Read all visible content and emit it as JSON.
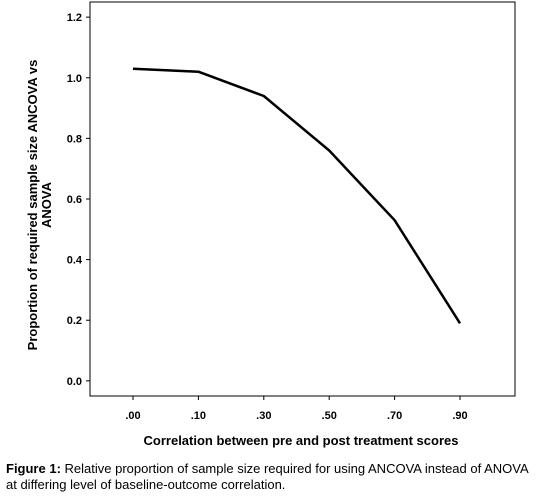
{
  "chart_data": {
    "type": "line",
    "x": [
      ".00",
      ".10",
      ".30",
      ".50",
      ".70",
      ".90"
    ],
    "series": [
      {
        "values": [
          1.03,
          1.02,
          0.94,
          0.76,
          0.53,
          0.19
        ]
      }
    ],
    "xlabel": "Correlation between pre and post treatment scores",
    "ylabel_lines": [
      "Proportion of required sample size ANCOVA vs",
      "ANOVA"
    ],
    "yticks": [
      "0.0",
      "0.2",
      "0.4",
      "0.6",
      "0.8",
      "1.0",
      "1.2"
    ],
    "ylim": [
      -0.05,
      1.25
    ],
    "grid": false,
    "line_color": "#000000"
  },
  "caption": {
    "label": "Figure 1:",
    "text": " Relative proportion of sample size required for using ANCOVA instead of ANOVA at differing level of baseline-outcome correlation."
  }
}
